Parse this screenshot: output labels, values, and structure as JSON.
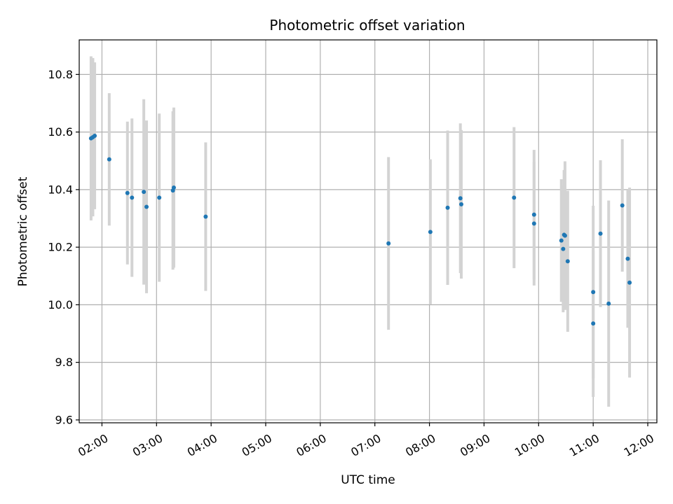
{
  "chart_data": {
    "type": "scatter",
    "title": "Photometric offset variation",
    "xlabel": "UTC time",
    "ylabel": "Photometric offset",
    "xlim": [
      "01:35",
      "12:10"
    ],
    "ylim": [
      9.59,
      10.92
    ],
    "x_ticks": [
      "02:00",
      "03:00",
      "04:00",
      "05:00",
      "06:00",
      "07:00",
      "08:00",
      "09:00",
      "10:00",
      "11:00",
      "12:00"
    ],
    "y_ticks": [
      "9.6",
      "9.8",
      "10.0",
      "10.2",
      "10.4",
      "10.6",
      "10.8"
    ],
    "grid": true,
    "colors": {
      "points": "#1f77b4",
      "errorbars": "#d3d3d3",
      "grid": "#b0b0b0"
    },
    "points": [
      {
        "x": "01:48",
        "y": 10.578,
        "err": 0.285
      },
      {
        "x": "01:50",
        "y": 10.582,
        "err": 0.275
      },
      {
        "x": "01:52",
        "y": 10.587,
        "err": 0.255
      },
      {
        "x": "02:08",
        "y": 10.505,
        "err": 0.23
      },
      {
        "x": "02:28",
        "y": 10.388,
        "err": 0.248
      },
      {
        "x": "02:33",
        "y": 10.372,
        "err": 0.275
      },
      {
        "x": "02:46",
        "y": 10.392,
        "err": 0.322
      },
      {
        "x": "02:49",
        "y": 10.34,
        "err": 0.3
      },
      {
        "x": "03:03",
        "y": 10.372,
        "err": 0.292
      },
      {
        "x": "03:18",
        "y": 10.397,
        "err": 0.275
      },
      {
        "x": "03:19",
        "y": 10.407,
        "err": 0.278
      },
      {
        "x": "03:54",
        "y": 10.306,
        "err": 0.258
      },
      {
        "x": "07:15",
        "y": 10.213,
        "err": 0.3
      },
      {
        "x": "08:01",
        "y": 10.253,
        "err": 0.252
      },
      {
        "x": "08:20",
        "y": 10.337,
        "err": 0.268
      },
      {
        "x": "08:34",
        "y": 10.37,
        "err": 0.26
      },
      {
        "x": "08:35",
        "y": 10.349,
        "err": 0.258
      },
      {
        "x": "09:33",
        "y": 10.372,
        "err": 0.245
      },
      {
        "x": "09:55",
        "y": 10.313,
        "err": 0.225
      },
      {
        "x": "09:55",
        "y": 10.282,
        "err": 0.215
      },
      {
        "x": "10:25",
        "y": 10.223,
        "err": 0.213
      },
      {
        "x": "10:27",
        "y": 10.194,
        "err": 0.22
      },
      {
        "x": "10:28",
        "y": 10.243,
        "err": 0.225
      },
      {
        "x": "10:29",
        "y": 10.24,
        "err": 0.258
      },
      {
        "x": "10:32",
        "y": 10.151,
        "err": 0.245
      },
      {
        "x": "11:00",
        "y": 10.044,
        "err": 0.3
      },
      {
        "x": "11:00",
        "y": 9.935,
        "err": 0.255
      },
      {
        "x": "11:08",
        "y": 10.247,
        "err": 0.255
      },
      {
        "x": "11:17",
        "y": 10.004,
        "err": 0.358
      },
      {
        "x": "11:32",
        "y": 10.345,
        "err": 0.23
      },
      {
        "x": "11:38",
        "y": 10.16,
        "err": 0.24
      },
      {
        "x": "11:40",
        "y": 10.077,
        "err": 0.33
      }
    ]
  }
}
